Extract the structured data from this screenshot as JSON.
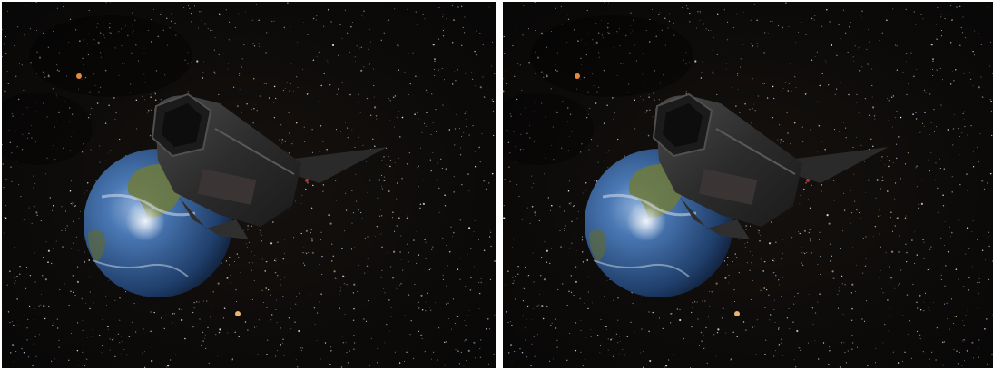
{
  "scene": {
    "type": "stereo-side-by-side",
    "views": [
      "left-eye",
      "right-eye"
    ],
    "background_color": "#0a0908",
    "divider_color": "#ffffff",
    "objects": [
      "starfield",
      "earth",
      "spaceship",
      "orange-star"
    ],
    "colors": {
      "earth_ocean": "#2f5f99",
      "earth_land": "#6f7a3a",
      "ship_hull": "#3c3c3c",
      "star_orange": "#e58a3c"
    }
  }
}
